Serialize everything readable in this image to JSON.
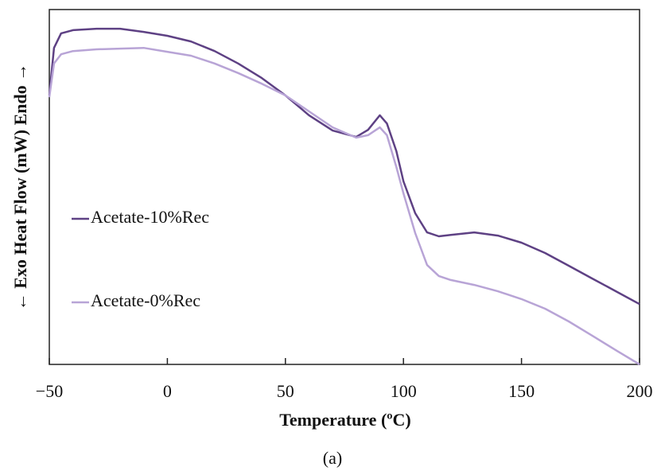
{
  "chart_data": {
    "type": "line",
    "x_label": "Temperature (ºC)",
    "y_label": "← Exo  Heat Flow (mW) Endo →",
    "caption": "(a)",
    "x": [
      -50,
      -48,
      -45,
      -40,
      -30,
      -20,
      -10,
      0,
      10,
      20,
      30,
      40,
      50,
      60,
      70,
      80,
      85,
      90,
      93,
      97,
      100,
      105,
      110,
      115,
      120,
      130,
      140,
      150,
      160,
      170,
      180,
      190,
      200
    ],
    "series": [
      {
        "name": "Acetate-10%Rec",
        "color": "#5e4184",
        "values": [
          75.8,
          89.2,
          93.3,
          94.2,
          94.6,
          94.6,
          93.7,
          92.6,
          91.0,
          88.3,
          84.8,
          80.7,
          75.8,
          70.2,
          65.9,
          64.1,
          66.1,
          70.2,
          67.9,
          60.1,
          51.6,
          42.6,
          37.2,
          36.1,
          36.5,
          37.2,
          36.3,
          34.3,
          31.4,
          27.8,
          24.2,
          20.6,
          17.0
        ]
      },
      {
        "name": "Acetate-0%Rec",
        "color": "#b8a4d6",
        "values": [
          75.3,
          84.8,
          87.4,
          88.3,
          88.8,
          89.0,
          89.2,
          88.1,
          87.0,
          84.8,
          82.1,
          79.1,
          75.8,
          71.3,
          66.8,
          63.9,
          64.6,
          66.8,
          64.6,
          55.6,
          48.2,
          37.0,
          28.0,
          24.9,
          23.8,
          22.4,
          20.6,
          18.4,
          15.7,
          12.1,
          8.1,
          4.0,
          0
        ]
      }
    ],
    "xlim": [
      -50,
      200
    ],
    "xticks": [
      {
        "value": -50,
        "label": "−50"
      },
      0,
      50,
      100,
      150,
      200
    ],
    "ylim": [
      0,
      100
    ]
  }
}
